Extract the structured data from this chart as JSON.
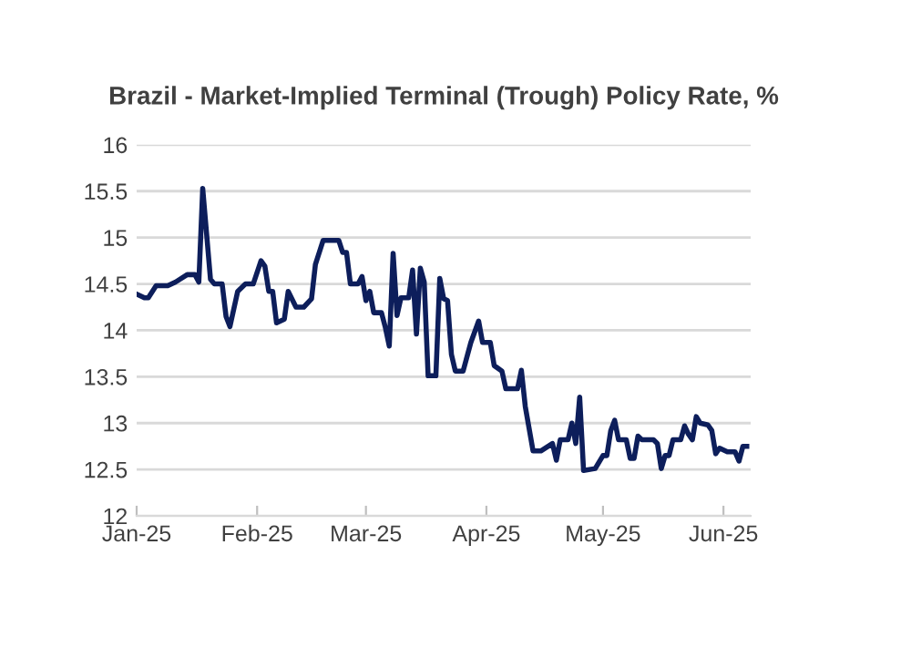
{
  "chart_data": {
    "type": "line",
    "title": "Brazil - Market-Implied Terminal (Trough) Policy Rate, %",
    "x": [
      "2025-01-01",
      "2025-01-03",
      "2025-01-04",
      "2025-01-06",
      "2025-01-09",
      "2025-01-11",
      "2025-01-14",
      "2025-01-16",
      "2025-01-17",
      "2025-01-18",
      "2025-01-20",
      "2025-01-21",
      "2025-01-23",
      "2025-01-24",
      "2025-01-25",
      "2025-01-27",
      "2025-01-29",
      "2025-01-31",
      "2025-02-02",
      "2025-02-03",
      "2025-02-04",
      "2025-02-05",
      "2025-02-06",
      "2025-02-08",
      "2025-02-09",
      "2025-02-11",
      "2025-02-13",
      "2025-02-15",
      "2025-02-16",
      "2025-02-18",
      "2025-02-22",
      "2025-02-23",
      "2025-02-24",
      "2025-02-25",
      "2025-02-27",
      "2025-02-28",
      "2025-03-01",
      "2025-03-02",
      "2025-03-03",
      "2025-03-05",
      "2025-03-06",
      "2025-03-07",
      "2025-03-08",
      "2025-03-09",
      "2025-03-10",
      "2025-03-12",
      "2025-03-13",
      "2025-03-14",
      "2025-03-15",
      "2025-03-16",
      "2025-03-17",
      "2025-03-19",
      "2025-03-20",
      "2025-03-21",
      "2025-03-22",
      "2025-03-23",
      "2025-03-24",
      "2025-03-26",
      "2025-03-28",
      "2025-03-30",
      "2025-03-31",
      "2025-04-02",
      "2025-04-03",
      "2025-04-05",
      "2025-04-06",
      "2025-04-09",
      "2025-04-10",
      "2025-04-11",
      "2025-04-13",
      "2025-04-15",
      "2025-04-18",
      "2025-04-19",
      "2025-04-20",
      "2025-04-22",
      "2025-04-23",
      "2025-04-24",
      "2025-04-25",
      "2025-04-26",
      "2025-04-29",
      "2025-05-01",
      "2025-05-02",
      "2025-05-03",
      "2025-05-04",
      "2025-05-05",
      "2025-05-07",
      "2025-05-08",
      "2025-05-09",
      "2025-05-10",
      "2025-05-11",
      "2025-05-14",
      "2025-05-15",
      "2025-05-16",
      "2025-05-17",
      "2025-05-18",
      "2025-05-19",
      "2025-05-21",
      "2025-05-22",
      "2025-05-23",
      "2025-05-24",
      "2025-05-25",
      "2025-05-26",
      "2025-05-28",
      "2025-05-29",
      "2025-05-30",
      "2025-05-31",
      "2025-06-02",
      "2025-06-04",
      "2025-06-05",
      "2025-06-06",
      "2025-06-07"
    ],
    "series": [
      {
        "color": "#0d1e5b",
        "values": [
          14.39,
          14.35,
          14.35,
          14.48,
          14.48,
          14.52,
          14.6,
          14.6,
          14.52,
          15.53,
          14.55,
          14.5,
          14.5,
          14.15,
          14.04,
          14.42,
          14.5,
          14.5,
          14.75,
          14.69,
          14.42,
          14.42,
          14.08,
          14.12,
          14.42,
          14.25,
          14.25,
          14.34,
          14.71,
          14.97,
          14.97,
          14.84,
          14.84,
          14.5,
          14.5,
          14.58,
          14.32,
          14.42,
          14.19,
          14.19,
          14.03,
          13.83,
          14.83,
          14.16,
          14.35,
          14.35,
          14.65,
          13.96,
          14.67,
          14.52,
          13.51,
          13.51,
          14.56,
          14.34,
          14.32,
          13.74,
          13.56,
          13.56,
          13.87,
          14.1,
          13.87,
          13.87,
          13.62,
          13.56,
          13.37,
          13.37,
          13.57,
          13.18,
          12.7,
          12.7,
          12.78,
          12.6,
          12.82,
          12.82,
          13.0,
          12.78,
          13.28,
          12.49,
          12.51,
          12.65,
          12.65,
          12.92,
          13.03,
          12.82,
          12.82,
          12.62,
          12.62,
          12.86,
          12.82,
          12.82,
          12.78,
          12.51,
          12.65,
          12.65,
          12.82,
          12.82,
          12.97,
          12.88,
          12.82,
          13.07,
          13.0,
          12.98,
          12.92,
          12.67,
          12.73,
          12.69,
          12.69,
          12.59,
          12.75,
          12.75
        ]
      }
    ],
    "xlim": [
      "2025-01-01",
      "2025-06-08"
    ],
    "xticks": [
      {
        "value": "2025-01-01",
        "label": "Jan-25"
      },
      {
        "value": "2025-02-01",
        "label": "Feb-25"
      },
      {
        "value": "2025-03-01",
        "label": "Mar-25"
      },
      {
        "value": "2025-04-01",
        "label": "Apr-25"
      },
      {
        "value": "2025-05-01",
        "label": "May-25"
      },
      {
        "value": "2025-06-01",
        "label": "Jun-25"
      }
    ],
    "ylim": [
      12,
      16
    ],
    "yticks": [
      12,
      12.5,
      13,
      13.5,
      14,
      14.5,
      15,
      15.5,
      16
    ],
    "grid": "y",
    "legend": false,
    "marker": "none",
    "line_style": "solid"
  }
}
